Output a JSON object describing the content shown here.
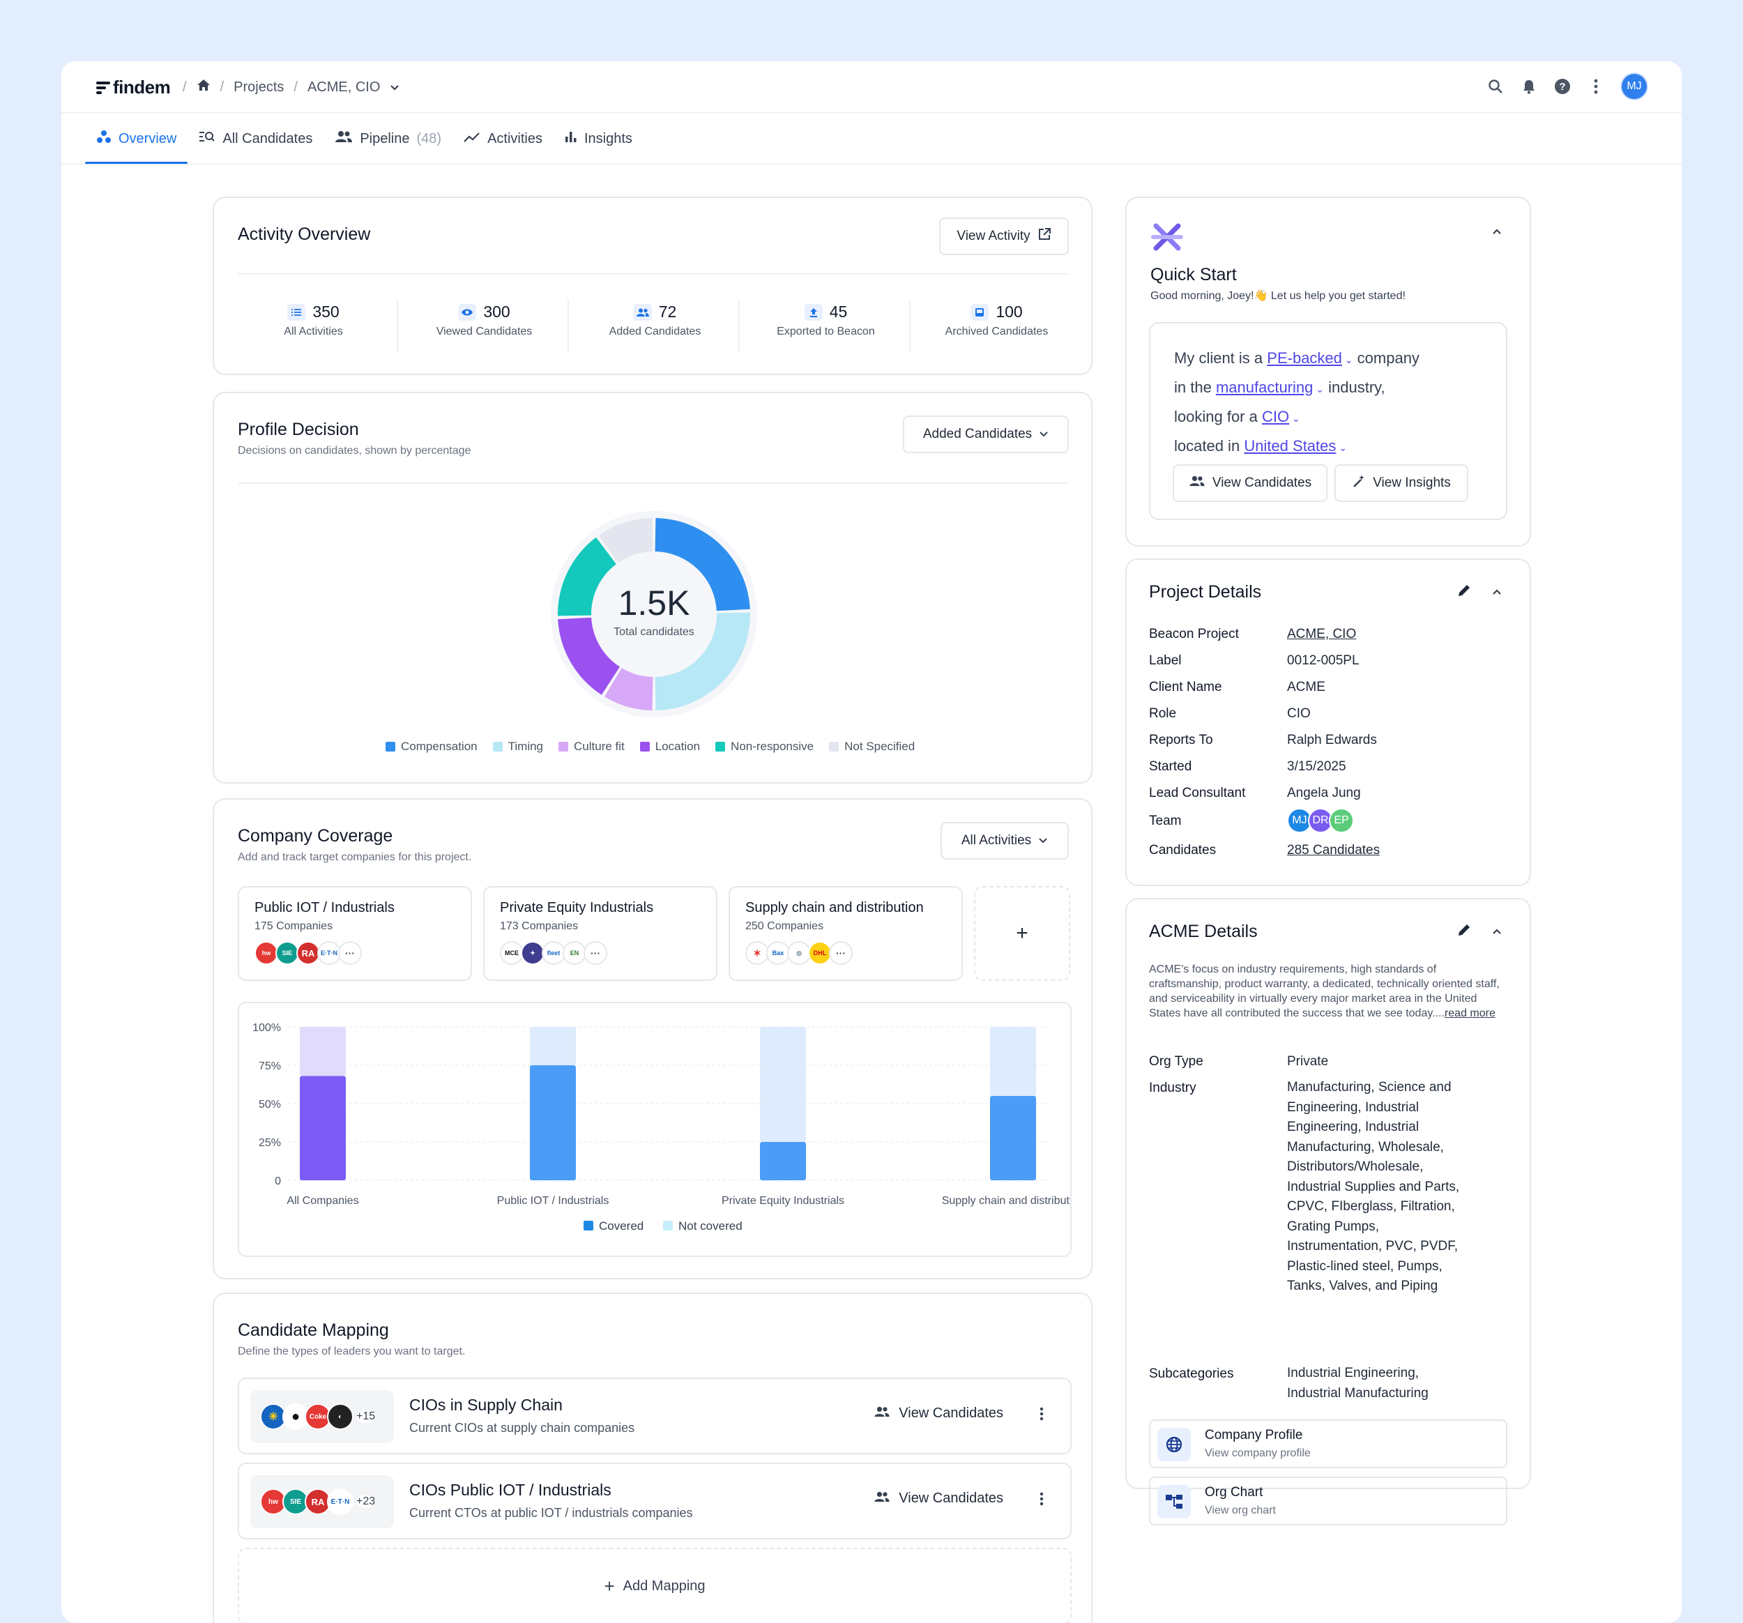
{
  "app": {
    "logo": "findem"
  },
  "breadcrumb": {
    "projects": "Projects",
    "current": "ACME, CIO"
  },
  "user": {
    "initials": "MJ"
  },
  "tabs": [
    {
      "label": "Overview"
    },
    {
      "label": "All Candidates"
    },
    {
      "label": "Pipeline",
      "count": "(48)"
    },
    {
      "label": "Activities"
    },
    {
      "label": "Insights"
    }
  ],
  "activity_overview": {
    "title": "Activity Overview",
    "button": "View Activity",
    "stats": [
      {
        "value": "350",
        "label": "All Activities",
        "icon": "list-icon"
      },
      {
        "value": "300",
        "label": "Viewed Candidates",
        "icon": "eye-icon"
      },
      {
        "value": "72",
        "label": "Added Candidates",
        "icon": "people-icon"
      },
      {
        "value": "45",
        "label": "Exported to Beacon",
        "icon": "upload-icon"
      },
      {
        "value": "100",
        "label": "Archived Candidates",
        "icon": "inbox-icon"
      }
    ]
  },
  "profile_decision": {
    "title": "Profile Decision",
    "subtitle": "Decisions on candidates, shown by percentage",
    "dropdown": "Added Candidates",
    "center_value": "1.5K",
    "center_label": "Total candidates"
  },
  "company_coverage": {
    "title": "Company Coverage",
    "subtitle": "Add and track target companies for this project.",
    "dropdown": "All Activities",
    "segments": [
      {
        "title": "Public IOT / Industrials",
        "count": "175 Companies"
      },
      {
        "title": "Private Equity Industrials",
        "count": "173 Companies"
      },
      {
        "title": "Supply chain and distribution",
        "count": "250 Companies"
      }
    ],
    "add_symbol": "+"
  },
  "chart_data": [
    {
      "type": "pie",
      "title": "",
      "categories": [
        "Compensation",
        "Timing",
        "Culture fit",
        "Location",
        "Non-responsive",
        "Not Specified"
      ],
      "values": [
        22,
        23,
        8,
        14,
        14,
        9
      ],
      "colors": [
        "#2e8ff0",
        "#b7e8f6",
        "#d7a8f7",
        "#9b51f0",
        "#14c8bc",
        "#e3e6ee"
      ],
      "legend": "bottom"
    },
    {
      "type": "bar",
      "stacked": true,
      "categories": [
        "All Companies",
        "Public IOT / Industrials",
        "Private Equity Industrials",
        "Supply chain and distribution"
      ],
      "series": [
        {
          "name": "Covered",
          "values": [
            68,
            75,
            25,
            55
          ]
        },
        {
          "name": "Not covered",
          "values": [
            32,
            25,
            75,
            45
          ]
        }
      ],
      "ylim": [
        0,
        100
      ],
      "yticks": [
        "0",
        "25%",
        "50%",
        "75%",
        "100%"
      ],
      "grid": true,
      "legend": "bottom"
    }
  ],
  "candidate_mapping": {
    "title": "Candidate Mapping",
    "subtitle": "Define the types of leaders you want to target.",
    "rows": [
      {
        "title": "CIOs in Supply Chain",
        "desc": "Current CIOs at supply chain companies",
        "more": "+15",
        "action": "View Candidates"
      },
      {
        "title": "CIOs Public IOT / Industrials",
        "desc": "Current CTOs at public IOT / industrials companies",
        "more": "+23",
        "action": "View Candidates"
      }
    ],
    "add": "Add Mapping"
  },
  "quick_start": {
    "title": "Quick Start",
    "greeting": "Good morning, Joey!👋 Let us help you get started!",
    "l1a": "My client is a",
    "l1b": "PE-backed",
    "l1c": "company",
    "l2a": "in the",
    "l2b": "manufacturing",
    "l2c": "industry,",
    "l3a": "looking for a",
    "l3b": "CIO",
    "l4a": "located in",
    "l4b": "United States",
    "btn1": "View Candidates",
    "btn2": "View Insights"
  },
  "project_details": {
    "title": "Project Details",
    "rows": [
      {
        "k": "Beacon Project",
        "v": "ACME, CIO"
      },
      {
        "k": "Label",
        "v": "0012-005PL"
      },
      {
        "k": "Client Name",
        "v": "ACME"
      },
      {
        "k": "Role",
        "v": "CIO"
      },
      {
        "k": "Reports To",
        "v": "Ralph Edwards"
      },
      {
        "k": "Started",
        "v": "3/15/2025"
      },
      {
        "k": "Lead Consultant",
        "v": "Angela Jung"
      },
      {
        "k": "Team",
        "v": ""
      },
      {
        "k": "Candidates",
        "v": "285 Candidates"
      }
    ],
    "team": [
      "MJ",
      "DR",
      "EP"
    ]
  },
  "acme_details": {
    "title": "ACME Details",
    "desc": "ACME's focus on industry requirements, high standards of craftsmanship, product warranty, a dedicated, technically oriented staff, and serviceability in virtually every major market area in the United States have all contributed the success that we see today....",
    "read_more": "read more",
    "org_type_k": "Org Type",
    "org_type_v": "Private",
    "industry_k": "Industry",
    "industry_lines": [
      "Manufacturing, Science and",
      "Engineering, Industrial",
      "Engineering, Industrial",
      "Manufacturing, Wholesale,",
      "Distributors/Wholesale,",
      "Industrial Supplies and Parts,",
      "CPVC, FIberglass, Filtration,",
      "Grating Pumps,",
      "Instrumentation, PVC, PVDF,",
      "Plastic-lined steel, Pumps,",
      "Tanks, Valves, and Piping"
    ],
    "sub_k": "Subcategories",
    "sub_lines": [
      "Industrial Engineering,",
      "Industrial Manufacturing"
    ],
    "links": [
      {
        "title": "Company Profile",
        "desc": "View company profile"
      },
      {
        "title": "Org Chart",
        "desc": "View org chart"
      }
    ]
  }
}
